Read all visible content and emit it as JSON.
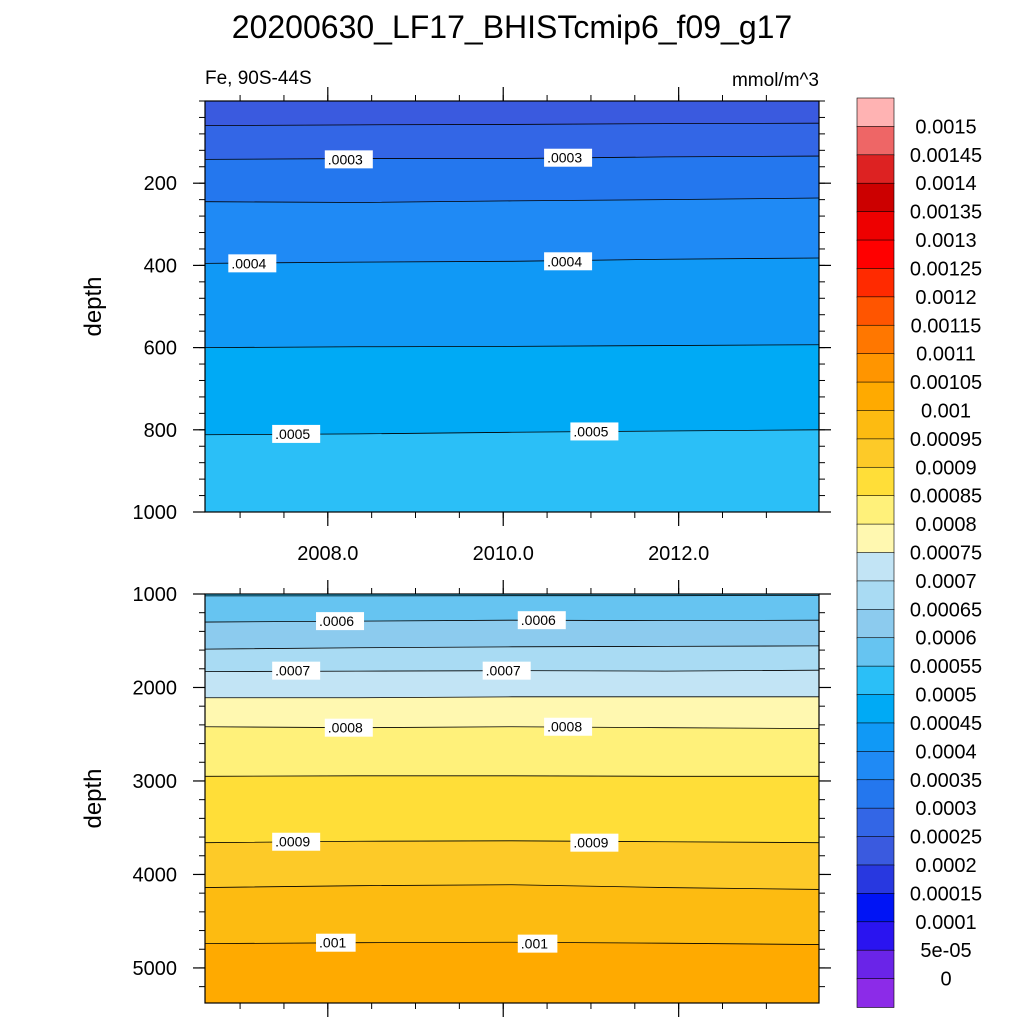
{
  "figure": {
    "title": "20200630_LF17_BHISTcmip6_f09_g17",
    "variable_label": "Fe, 90S-44S",
    "units_label": "mmol/m^3"
  },
  "chart_data": [
    {
      "type": "contour",
      "panel": "upper",
      "xlabel": "",
      "ylabel": "depth",
      "xlim": [
        2006.6,
        2013.6
      ],
      "ylim": [
        1000,
        0
      ],
      "x_ticks": [
        2008.0,
        2010.0,
        2012.0
      ],
      "x_tick_labels": [
        "2008.0",
        "2010.0",
        "2012.0"
      ],
      "y_ticks": [
        200,
        400,
        600,
        800,
        1000
      ],
      "y_tick_labels": [
        "200",
        "400",
        "600",
        "800",
        "1000"
      ],
      "level_depths": [
        {
          "level": 0.00025,
          "depth": [
            60,
            58,
            57,
            55,
            54
          ]
        },
        {
          "level": 0.0003,
          "depth": [
            142,
            140,
            140,
            136,
            134
          ]
        },
        {
          "level": 0.00035,
          "depth": [
            245,
            247,
            243,
            240,
            236
          ]
        },
        {
          "level": 0.0004,
          "depth": [
            395,
            392,
            390,
            385,
            382
          ]
        },
        {
          "level": 0.00045,
          "depth": [
            600,
            598,
            597,
            595,
            593
          ]
        },
        {
          "level": 0.0005,
          "depth": [
            812,
            810,
            806,
            803,
            800
          ]
        }
      ],
      "level_depths_x": [
        2006.6,
        2008.35,
        2010.1,
        2011.85,
        2013.6
      ],
      "contour_labels": [
        {
          "text": ".0003",
          "x": 2008.0,
          "depth": 142
        },
        {
          "text": ".0003",
          "x": 2010.5,
          "depth": 138
        },
        {
          "text": ".0004",
          "x": 2006.9,
          "depth": 395
        },
        {
          "text": ".0004",
          "x": 2010.5,
          "depth": 390
        },
        {
          "text": ".0005",
          "x": 2007.4,
          "depth": 810
        },
        {
          "text": ".0005",
          "x": 2010.8,
          "depth": 804
        }
      ]
    },
    {
      "type": "contour",
      "panel": "lower",
      "xlabel": "",
      "ylabel": "depth",
      "xlim": [
        2006.6,
        2013.6
      ],
      "ylim": [
        5375,
        1000
      ],
      "x_ticks": [
        2008.0,
        2010.0,
        2012.0
      ],
      "y_ticks": [
        1000,
        2000,
        3000,
        4000,
        5000
      ],
      "y_tick_labels": [
        "1000",
        "2000",
        "3000",
        "4000",
        "5000"
      ],
      "level_depths": [
        {
          "level": 0.00055,
          "depth": [
            1020,
            1020,
            1018,
            1018,
            1015
          ]
        },
        {
          "level": 0.0006,
          "depth": [
            1300,
            1290,
            1280,
            1285,
            1280
          ]
        },
        {
          "level": 0.00065,
          "depth": [
            1590,
            1575,
            1565,
            1560,
            1555
          ]
        },
        {
          "level": 0.0007,
          "depth": [
            1830,
            1825,
            1820,
            1825,
            1815
          ]
        },
        {
          "level": 0.00075,
          "depth": [
            2110,
            2110,
            2100,
            2100,
            2100
          ]
        },
        {
          "level": 0.0008,
          "depth": [
            2420,
            2430,
            2420,
            2430,
            2440
          ]
        },
        {
          "level": 0.00085,
          "depth": [
            2950,
            2945,
            2945,
            2950,
            2950
          ]
        },
        {
          "level": 0.0009,
          "depth": [
            3660,
            3645,
            3640,
            3650,
            3660
          ]
        },
        {
          "level": 0.00095,
          "depth": [
            4140,
            4120,
            4110,
            4140,
            4160
          ]
        },
        {
          "level": 0.001,
          "depth": [
            4740,
            4730,
            4725,
            4735,
            4750
          ]
        }
      ],
      "level_depths_x": [
        2006.6,
        2008.35,
        2010.1,
        2011.85,
        2013.6
      ],
      "contour_labels": [
        {
          "text": ".0006",
          "x": 2007.9,
          "depth": 1290
        },
        {
          "text": ".0006",
          "x": 2010.2,
          "depth": 1280
        },
        {
          "text": ".0007",
          "x": 2007.4,
          "depth": 1820
        },
        {
          "text": ".0007",
          "x": 2009.8,
          "depth": 1820
        },
        {
          "text": ".0008",
          "x": 2008.0,
          "depth": 2430
        },
        {
          "text": ".0008",
          "x": 2010.5,
          "depth": 2420
        },
        {
          "text": ".0009",
          "x": 2007.4,
          "depth": 3650
        },
        {
          "text": ".0009",
          "x": 2010.8,
          "depth": 3660
        },
        {
          "text": ".001",
          "x": 2007.9,
          "depth": 4730
        },
        {
          "text": ".001",
          "x": 2010.2,
          "depth": 4740
        }
      ]
    }
  ],
  "colorbar": {
    "labels": [
      "0.0015",
      "0.00145",
      "0.0014",
      "0.00135",
      "0.0013",
      "0.00125",
      "0.0012",
      "0.00115",
      "0.0011",
      "0.00105",
      "0.001",
      "0.00095",
      "0.0009",
      "0.00085",
      "0.0008",
      "0.00075",
      "0.0007",
      "0.00065",
      "0.0006",
      "0.00055",
      "0.0005",
      "0.00045",
      "0.0004",
      "0.00035",
      "0.0003",
      "0.00025",
      "0.0002",
      "0.00015",
      "0.0001",
      "5e-05",
      "0"
    ],
    "colors_top_to_bottom": [
      "#ffb3b3",
      "#ee6666",
      "#dd2222",
      "#cc0000",
      "#ee0000",
      "#ff0000",
      "#ff2a00",
      "#ff5500",
      "#ff7700",
      "#ff9500",
      "#ffaa00",
      "#fdbb11",
      "#fdca28",
      "#ffde38",
      "#fff17a",
      "#fff8b0",
      "#c2e4f5",
      "#a9dbf3",
      "#8ccbee",
      "#66c4f1",
      "#2bbff7",
      "#00aaf5",
      "#1099f6",
      "#1f8af5",
      "#2477ee",
      "#3366e6",
      "#3a5adf",
      "#2838e0",
      "#0014f5",
      "#2a14f0",
      "#6a24e8",
      "#8c2be8"
    ]
  }
}
